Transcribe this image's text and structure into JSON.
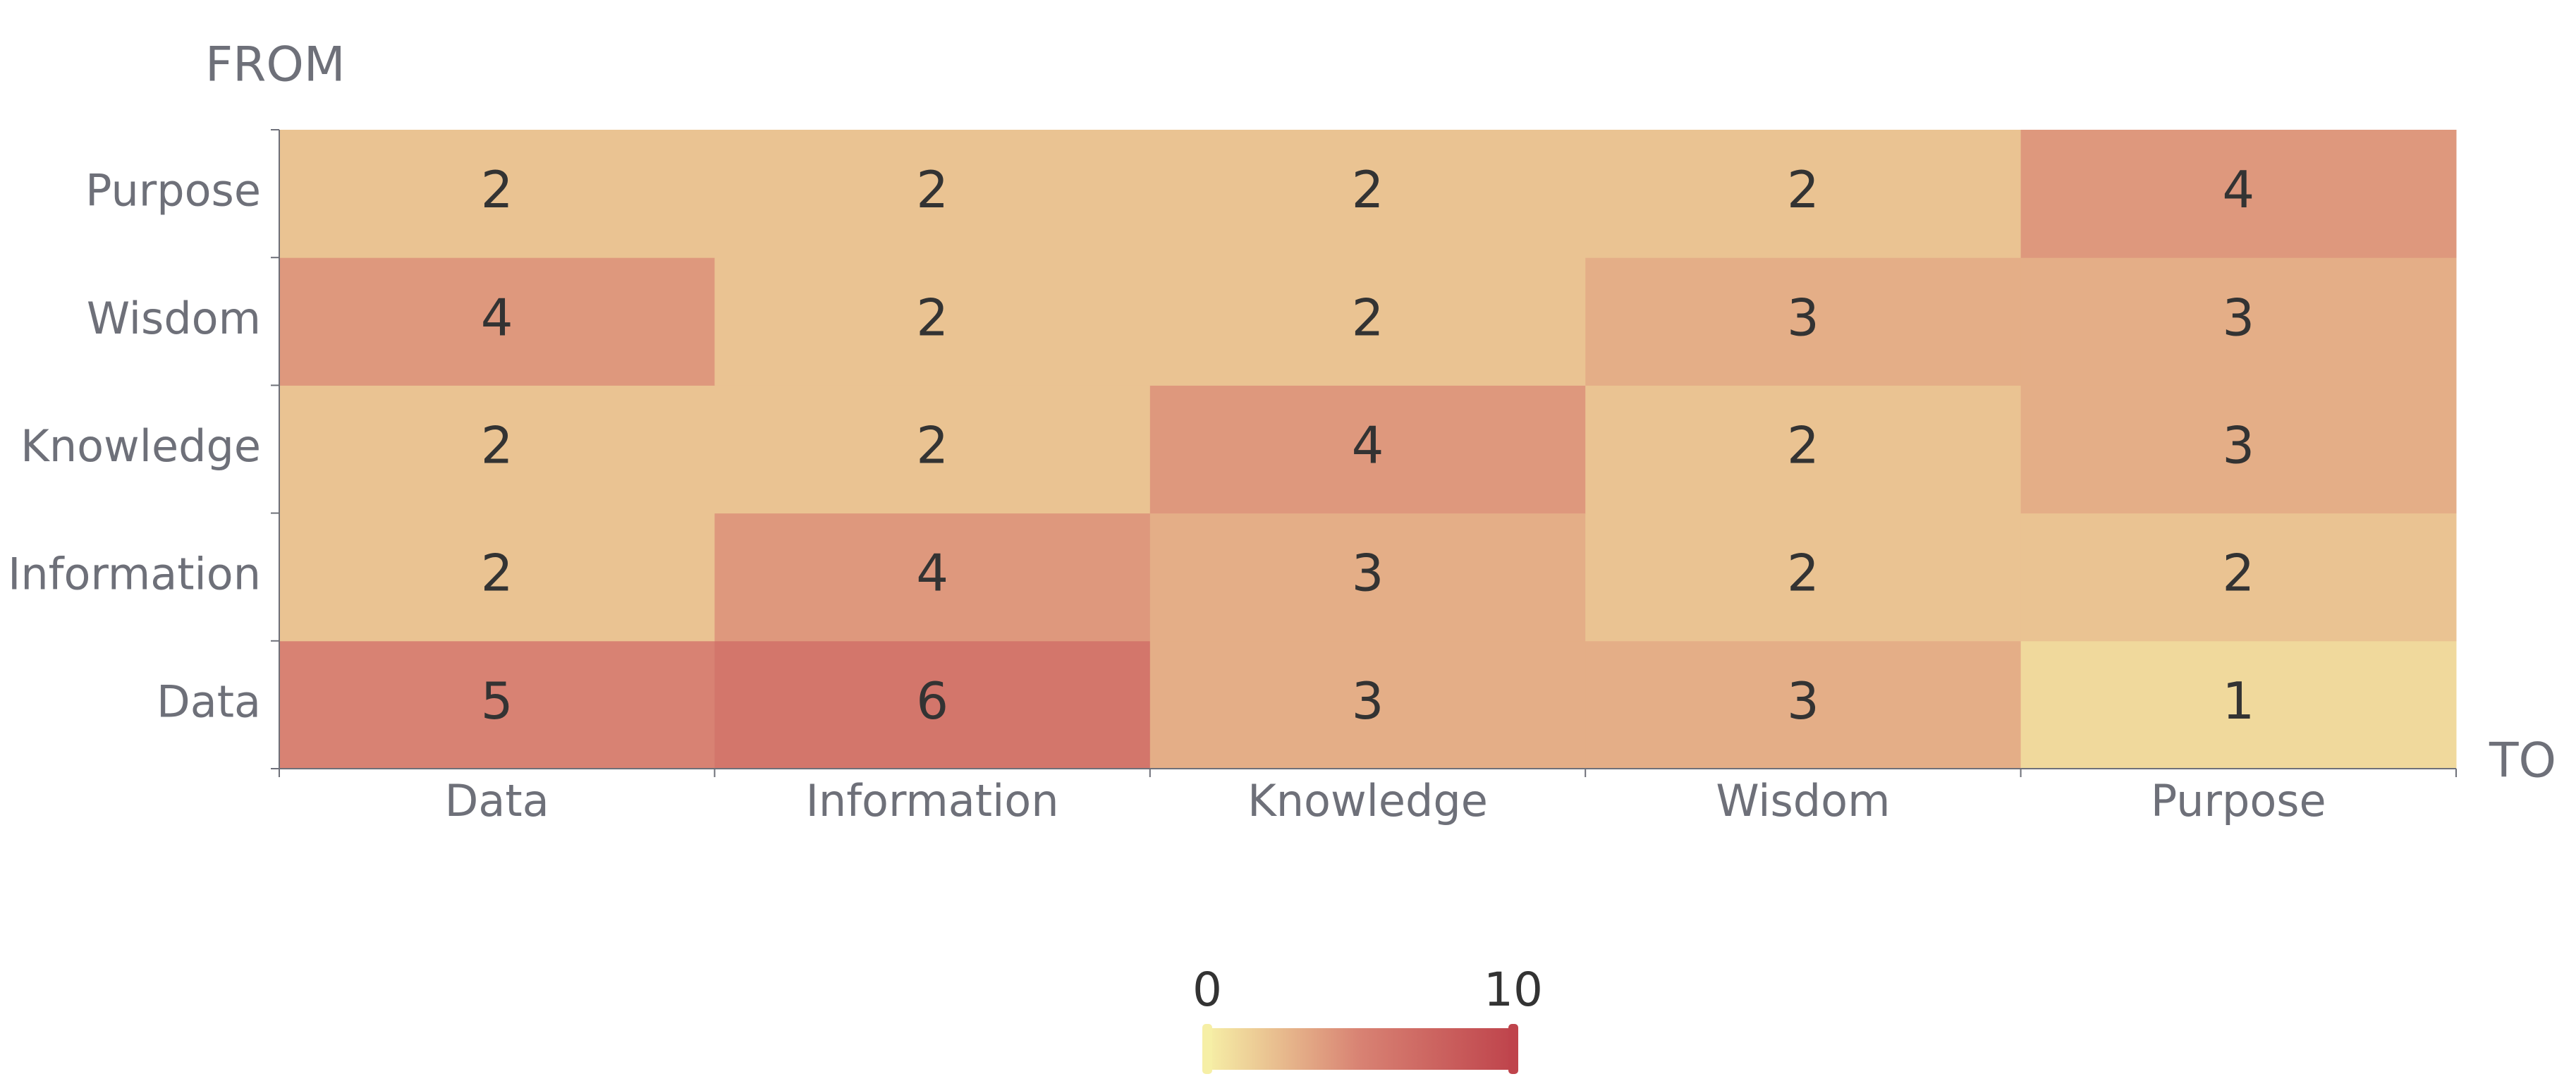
{
  "chart_data": {
    "type": "heatmap",
    "x_label": "TO",
    "y_label": "FROM",
    "x_categories": [
      "Data",
      "Information",
      "Knowledge",
      "Wisdom",
      "Purpose"
    ],
    "y_categories": [
      "Data",
      "Information",
      "Knowledge",
      "Wisdom",
      "Purpose"
    ],
    "values": [
      [
        5,
        6,
        3,
        3,
        1
      ],
      [
        2,
        4,
        3,
        2,
        2
      ],
      [
        2,
        2,
        4,
        2,
        3
      ],
      [
        4,
        2,
        2,
        3,
        3
      ],
      [
        2,
        2,
        2,
        2,
        4
      ]
    ],
    "visual_range": [
      0,
      10
    ],
    "colors": [
      "#f6efa6",
      "#d88273",
      "#bf444c"
    ]
  }
}
